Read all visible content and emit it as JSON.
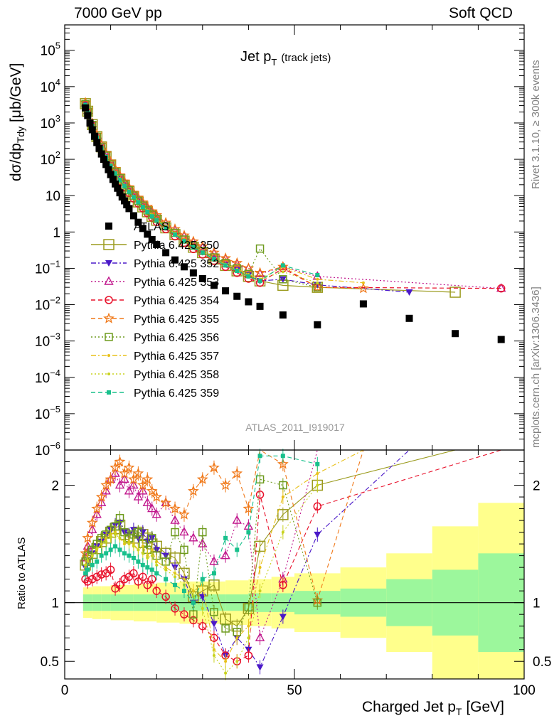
{
  "header": {
    "left": "7000 GeV pp",
    "right": "Soft QCD"
  },
  "side_labels": {
    "rivet": "Rivet 3.1.10, ≥ 300k events",
    "source": "mcplots.cern.ch [arXiv:1306.3436]"
  },
  "chart_data": {
    "type": "line",
    "title": "Jet p",
    "title_sub": "T",
    "title_note": "(track jets)",
    "watermark": "ATLAS_2011_I919017",
    "xlabel": "Charged Jet p",
    "xlabel_sub": "T",
    "xlabel_unit": "[GeV]",
    "ylabel": "dσ/dp",
    "ylabel_sub": "Tdy",
    "ylabel_unit": "[μb/GeV]",
    "ratio_ylabel": "Ratio to ATLAS",
    "xlim": [
      0,
      100
    ],
    "ylim": [
      1e-06,
      500000.0
    ],
    "yscale": "log",
    "ratio_ylim": [
      0.35,
      2.3
    ],
    "xticks": [
      "0",
      "50",
      "100"
    ],
    "yticks": [
      "10^-6",
      "10^-5",
      "10^-4",
      "10^-3",
      "10^-2",
      "10^-1",
      "1",
      "10",
      "10^2",
      "10^3",
      "10^4",
      "10^5"
    ],
    "ratio_yticks": [
      "0.5",
      "1",
      "2"
    ],
    "legend_position": "middle-left",
    "series": [
      {
        "name": "ATLAS",
        "color": "#000000",
        "marker": "filled-square",
        "line": "none",
        "x": [
          4.5,
          5,
          5.5,
          6,
          6.5,
          7,
          7.5,
          8,
          8.5,
          9,
          9.5,
          10,
          10.5,
          11,
          11.5,
          12,
          12.5,
          13,
          13.5,
          14,
          15,
          16,
          17,
          18,
          19,
          20,
          22,
          24,
          26,
          28,
          30,
          32.5,
          35,
          37.5,
          40,
          42.5,
          47.5,
          55,
          65,
          75,
          85,
          95
        ],
        "y": [
          2600,
          1600,
          1000,
          650,
          430,
          290,
          200,
          140,
          100,
          72,
          52,
          38,
          28,
          21,
          16,
          12,
          9.2,
          7.2,
          5.6,
          4.4,
          2.8,
          1.85,
          1.25,
          0.87,
          0.62,
          0.45,
          0.27,
          0.17,
          0.11,
          0.075,
          0.052,
          0.034,
          0.024,
          0.017,
          0.012,
          0.009,
          0.0052,
          0.0028,
          0.0105,
          0.0042,
          0.0016,
          0.0011
        ]
      },
      {
        "name": "Pythia 6.425 350",
        "color": "#9b9b1e",
        "marker": "open-square-large",
        "line": "solid",
        "x": [
          4.5,
          5,
          6,
          7,
          8,
          9,
          10,
          11,
          12,
          13,
          14,
          15,
          16,
          17,
          18,
          19,
          20,
          22,
          24,
          26,
          28,
          30,
          32.5,
          35,
          37.5,
          40,
          42.5,
          47.5,
          55,
          85
        ],
        "y": [
          3400,
          2100,
          900,
          420,
          220,
          120,
          70,
          43,
          28,
          19,
          13,
          9.3,
          6.7,
          4.9,
          3.6,
          2.7,
          2.1,
          1.3,
          0.85,
          0.56,
          0.38,
          0.27,
          0.18,
          0.12,
          0.085,
          0.06,
          0.045,
          0.034,
          0.03,
          0.022
        ],
        "ratio": [
          1.32,
          1.36,
          1.42,
          1.46,
          1.52,
          1.55,
          1.6,
          1.63,
          1.66,
          1.58,
          1.55,
          1.55,
          1.6,
          1.58,
          1.55,
          1.5,
          1.48,
          1.42,
          1.38,
          1.25,
          1.05,
          1.1,
          1.15,
          0.86,
          0.8,
          0.95,
          1.48,
          1.75,
          2.0,
          2.3
        ]
      },
      {
        "name": "Pythia 6.425 352",
        "color": "#4a18c8",
        "marker": "filled-triangle-down",
        "line": "dash-dot",
        "x": [
          4.5,
          5,
          6,
          7,
          8,
          9,
          10,
          11,
          12,
          13,
          14,
          15,
          16,
          17,
          18,
          19,
          20,
          22,
          24,
          26,
          28,
          30,
          32.5,
          35,
          37.5,
          40,
          42.5,
          47.5,
          55,
          75
        ],
        "y": [
          3300,
          2000,
          870,
          410,
          215,
          120,
          70,
          44,
          29,
          19.5,
          13.5,
          9.6,
          7,
          5.1,
          3.8,
          2.8,
          2.2,
          1.35,
          0.9,
          0.58,
          0.4,
          0.28,
          0.19,
          0.13,
          0.09,
          0.065,
          0.045,
          0.05,
          0.035,
          0.022
        ],
        "ratio": [
          1.3,
          1.35,
          1.42,
          1.48,
          1.52,
          1.58,
          1.62,
          1.66,
          1.68,
          1.6,
          1.58,
          1.62,
          1.55,
          1.6,
          1.52,
          1.55,
          1.45,
          1.4,
          1.3,
          1.2,
          1.0,
          1.05,
          0.82,
          0.55,
          0.7,
          0.6,
          0.45,
          0.88,
          1.58,
          2.3
        ]
      },
      {
        "name": "Pythia 6.425 353",
        "color": "#c0168c",
        "marker": "open-triangle",
        "line": "dotted",
        "x": [
          4.5,
          5,
          6,
          7,
          8,
          9,
          10,
          11,
          12,
          13,
          14,
          15,
          16,
          17,
          18,
          19,
          20,
          22,
          24,
          26,
          28,
          30,
          32.5,
          35,
          37.5,
          40,
          42.5,
          47.5,
          55,
          95
        ],
        "y": [
          3500,
          2200,
          950,
          460,
          245,
          140,
          82,
          52,
          34,
          23,
          16,
          11.5,
          8.3,
          6.1,
          4.6,
          3.5,
          2.7,
          1.7,
          1.1,
          0.75,
          0.52,
          0.37,
          0.25,
          0.18,
          0.13,
          0.1,
          0.07,
          0.11,
          0.06,
          0.028
        ],
        "ratio": [
          1.38,
          1.48,
          1.62,
          1.75,
          1.85,
          1.95,
          2.05,
          2.1,
          2.0,
          2.05,
          1.95,
          2.0,
          1.9,
          1.95,
          1.85,
          1.8,
          1.75,
          1.85,
          1.7,
          1.6,
          1.55,
          1.5,
          1.35,
          1.4,
          1.7,
          1.65,
          0.7,
          1.2,
          2.3,
          2.3
        ]
      },
      {
        "name": "Pythia 6.425 354",
        "color": "#e8102a",
        "marker": "open-circle",
        "line": "dashed",
        "x": [
          4.5,
          5,
          6,
          7,
          8,
          9,
          10,
          11,
          12,
          13,
          14,
          15,
          16,
          17,
          18,
          19,
          20,
          22,
          24,
          26,
          28,
          30,
          32.5,
          35,
          37.5,
          40,
          42.5,
          47.5,
          55,
          95
        ],
        "y": [
          3100,
          1900,
          800,
          370,
          190,
          105,
          61,
          38,
          25,
          17,
          12,
          8.4,
          6.1,
          4.5,
          3.3,
          2.5,
          1.9,
          1.2,
          0.76,
          0.5,
          0.34,
          0.24,
          0.16,
          0.11,
          0.075,
          0.052,
          0.04,
          0.1,
          0.03,
          0.028
        ],
        "ratio": [
          1.2,
          1.18,
          1.2,
          1.22,
          1.24,
          1.25,
          1.28,
          1.12,
          1.15,
          1.2,
          1.22,
          1.25,
          1.18,
          1.22,
          1.15,
          1.2,
          1.1,
          1.05,
          0.95,
          0.9,
          0.85,
          0.8,
          0.7,
          0.55,
          0.5,
          0.55,
          1.92,
          1.15,
          1.82,
          2.3
        ]
      },
      {
        "name": "Pythia 6.425 355",
        "color": "#f07818",
        "marker": "open-star",
        "line": "dashed",
        "x": [
          4.5,
          5,
          6,
          7,
          8,
          9,
          10,
          11,
          12,
          13,
          14,
          15,
          16,
          17,
          18,
          19,
          20,
          22,
          24,
          26,
          28,
          30,
          32.5,
          35,
          37.5,
          40,
          42.5,
          47.5,
          55,
          65
        ],
        "y": [
          3600,
          2250,
          980,
          480,
          255,
          145,
          86,
          54,
          36,
          24.5,
          17,
          12,
          8.8,
          6.5,
          4.9,
          3.7,
          2.9,
          1.8,
          1.2,
          0.8,
          0.55,
          0.4,
          0.27,
          0.19,
          0.14,
          0.1,
          0.075,
          0.11,
          0.03,
          0.028
        ],
        "ratio": [
          1.42,
          1.55,
          1.68,
          1.8,
          1.9,
          2.0,
          2.05,
          2.15,
          2.2,
          2.1,
          2.15,
          2.05,
          2.1,
          2.0,
          2.05,
          1.95,
          1.9,
          1.85,
          1.8,
          1.75,
          1.95,
          2.05,
          2.15,
          2.0,
          2.1,
          1.8,
          2.3,
          2.18,
          1.02,
          2.3
        ]
      },
      {
        "name": "Pythia 6.425 356",
        "color": "#6e9b1e",
        "marker": "open-square",
        "line": "dotted",
        "x": [
          4.5,
          5,
          6,
          7,
          8,
          9,
          10,
          11,
          12,
          13,
          14,
          15,
          16,
          17,
          18,
          19,
          20,
          22,
          24,
          26,
          28,
          30,
          32.5,
          35,
          37.5,
          40,
          42.5,
          47.5,
          55
        ],
        "y": [
          3300,
          2050,
          880,
          420,
          220,
          125,
          72,
          45,
          30,
          20,
          14,
          10,
          7.2,
          5.3,
          3.9,
          3.0,
          2.3,
          1.45,
          0.95,
          0.62,
          0.42,
          0.3,
          0.2,
          0.14,
          0.1,
          0.07,
          0.35,
          0.05,
          0.03
        ],
        "ratio": [
          1.35,
          1.4,
          1.45,
          1.5,
          1.55,
          1.58,
          1.62,
          1.65,
          1.72,
          1.6,
          1.55,
          1.58,
          1.6,
          1.5,
          1.45,
          1.55,
          1.4,
          1.35,
          1.6,
          1.45,
          0.9,
          1.6,
          0.92,
          0.78,
          0.75,
          0.96,
          2.05,
          2.0,
          1.0
        ]
      },
      {
        "name": "Pythia 6.425 357",
        "color": "#e8c018",
        "marker": "small-dot",
        "line": "dash-dot",
        "x": [
          4.5,
          5,
          6,
          7,
          8,
          9,
          10,
          11,
          12,
          13,
          14,
          15,
          16,
          17,
          18,
          19,
          20,
          22,
          24,
          26,
          28,
          30,
          32.5,
          35,
          37.5,
          40,
          42.5,
          47.5,
          55,
          65
        ],
        "y": [
          3200,
          2000,
          860,
          410,
          215,
          122,
          70,
          44,
          29,
          19.5,
          13.5,
          9.7,
          7,
          5.2,
          3.8,
          2.9,
          2.2,
          1.4,
          0.92,
          0.6,
          0.41,
          0.29,
          0.19,
          0.13,
          0.095,
          0.068,
          0.05,
          0.11,
          0.05,
          0.04
        ],
        "ratio": [
          1.3,
          1.35,
          1.4,
          1.45,
          1.5,
          1.55,
          1.58,
          1.6,
          1.55,
          1.5,
          1.52,
          1.5,
          1.45,
          1.48,
          1.4,
          1.45,
          1.35,
          1.3,
          1.25,
          1.2,
          1.1,
          1.15,
          0.6,
          0.5,
          0.7,
          0.8,
          1.3,
          1.9,
          2.1,
          2.3
        ]
      },
      {
        "name": "Pythia 6.425 358",
        "color": "#c8d21e",
        "marker": "small-dot",
        "line": "dotted",
        "x": [
          4.5,
          5,
          6,
          7,
          8,
          9,
          10,
          11,
          12,
          13,
          14,
          15,
          16,
          17,
          18,
          19,
          20,
          22,
          24,
          26,
          28,
          30,
          32.5,
          35,
          37.5,
          40,
          42.5,
          47.5,
          55
        ],
        "y": [
          3250,
          2020,
          870,
          415,
          218,
          123,
          71,
          44.5,
          29.5,
          19.8,
          13.8,
          9.8,
          7.1,
          5.2,
          3.9,
          2.95,
          2.25,
          1.42,
          0.93,
          0.61,
          0.42,
          0.29,
          0.19,
          0.13,
          0.09,
          0.065,
          0.05,
          0.08,
          0.04
        ],
        "ratio": [
          1.32,
          1.36,
          1.4,
          1.46,
          1.5,
          1.52,
          1.56,
          1.58,
          1.55,
          1.52,
          1.5,
          1.48,
          1.45,
          1.42,
          1.38,
          1.4,
          1.32,
          1.28,
          1.22,
          1.15,
          1.05,
          0.95,
          0.55,
          0.4,
          0.5,
          0.7,
          1.1,
          1.6,
          2.0
        ]
      },
      {
        "name": "Pythia 6.425 359",
        "color": "#18c08c",
        "marker": "filled-square-small",
        "line": "dashed",
        "x": [
          4.5,
          5,
          6,
          7,
          8,
          9,
          10,
          11,
          12,
          13,
          14,
          15,
          16,
          17,
          18,
          19,
          20,
          22,
          24,
          26,
          28,
          30,
          32.5,
          35,
          37.5,
          40,
          42.5,
          47.5,
          55
        ],
        "y": [
          3150,
          1950,
          840,
          395,
          205,
          115,
          66,
          41,
          27,
          18.5,
          12.8,
          9.1,
          6.6,
          4.9,
          3.6,
          2.7,
          2.1,
          1.3,
          0.85,
          0.56,
          0.38,
          0.27,
          0.18,
          0.12,
          0.085,
          0.06,
          0.045,
          0.12,
          0.065
        ],
        "ratio": [
          1.25,
          1.28,
          1.32,
          1.35,
          1.4,
          1.42,
          1.45,
          1.48,
          1.45,
          1.42,
          1.4,
          1.38,
          1.35,
          1.32,
          1.3,
          1.28,
          1.25,
          1.2,
          1.15,
          1.1,
          1.0,
          1.2,
          1.25,
          1.55,
          1.45,
          1.6,
          2.25,
          2.25,
          2.18
        ]
      }
    ],
    "uncertainty_bands": {
      "x_edges": [
        4,
        6,
        8,
        10,
        12,
        15,
        20,
        25,
        30,
        35,
        40,
        45,
        50,
        60,
        70,
        80,
        90,
        100
      ],
      "green_half_width": [
        0.07,
        0.07,
        0.07,
        0.07,
        0.07,
        0.07,
        0.07,
        0.07,
        0.07,
        0.07,
        0.08,
        0.08,
        0.1,
        0.12,
        0.2,
        0.28,
        0.42,
        0.52
      ],
      "yellow_half_width": [
        0.13,
        0.14,
        0.14,
        0.15,
        0.15,
        0.16,
        0.17,
        0.18,
        0.18,
        0.19,
        0.2,
        0.22,
        0.25,
        0.3,
        0.42,
        0.65,
        0.85,
        0.9
      ]
    }
  }
}
